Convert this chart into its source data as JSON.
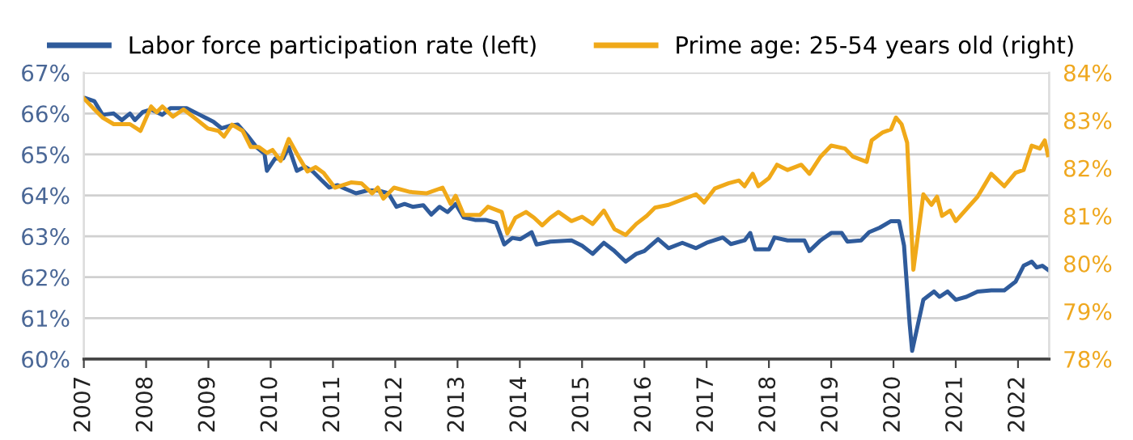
{
  "chart_data": {
    "type": "line",
    "legend": "top left",
    "grid": "y",
    "marker": "none",
    "line_style": "solid",
    "xlim": [
      2007,
      2022.5
    ],
    "xticks": [
      2007,
      2008,
      2009,
      2010,
      2011,
      2012,
      2013,
      2014,
      2015,
      2016,
      2017,
      2018,
      2019,
      2020,
      2021,
      2022
    ],
    "ylim": [
      60,
      67
    ],
    "yticks": [
      {
        "value": 60,
        "label": "60%"
      },
      {
        "value": 61,
        "label": "61%"
      },
      {
        "value": 62,
        "label": "62%"
      },
      {
        "value": 63,
        "label": "63%"
      },
      {
        "value": 64,
        "label": "64%"
      },
      {
        "value": 65,
        "label": "65%"
      },
      {
        "value": 66,
        "label": "66%"
      },
      {
        "value": 67,
        "label": "67%"
      }
    ],
    "y2lim": [
      78,
      84
    ],
    "y2ticks": [
      {
        "value": 78,
        "label": "78%"
      },
      {
        "value": 79,
        "label": "79%"
      },
      {
        "value": 80,
        "label": "80%"
      },
      {
        "value": 81,
        "label": "81%"
      },
      {
        "value": 82,
        "label": "82%"
      },
      {
        "value": 83,
        "label": "83%"
      },
      {
        "value": 84,
        "label": "84%"
      }
    ],
    "series": [
      {
        "name": "Labor force participation rate (left)",
        "color": "#2f5b9b",
        "x": [
          2007.0,
          2007.17,
          2007.3,
          2007.48,
          2007.61,
          2007.74,
          2007.82,
          2007.95,
          2008.08,
          2008.26,
          2008.39,
          2008.65,
          2008.86,
          2009.08,
          2009.21,
          2009.34,
          2009.47,
          2009.64,
          2009.77,
          2009.9,
          2009.94,
          2010.07,
          2010.2,
          2010.29,
          2010.42,
          2010.55,
          2010.68,
          2010.81,
          2010.94,
          2011.07,
          2011.2,
          2011.37,
          2011.55,
          2011.72,
          2011.89,
          2012.02,
          2012.15,
          2012.28,
          2012.45,
          2012.58,
          2012.71,
          2012.84,
          2012.97,
          2013.1,
          2013.28,
          2013.45,
          2013.62,
          2013.75,
          2013.88,
          2014.01,
          2014.19,
          2014.27,
          2014.49,
          2014.83,
          2015.0,
          2015.17,
          2015.35,
          2015.52,
          2015.7,
          2015.87,
          2016.0,
          2016.22,
          2016.39,
          2016.61,
          2016.83,
          2017.0,
          2017.26,
          2017.39,
          2017.61,
          2017.7,
          2017.78,
          2018.0,
          2018.09,
          2018.3,
          2018.57,
          2018.65,
          2018.83,
          2019.0,
          2019.17,
          2019.26,
          2019.48,
          2019.61,
          2019.78,
          2019.96,
          2020.09,
          2020.17,
          2020.26,
          2020.3,
          2020.48,
          2020.65,
          2020.74,
          2020.87,
          2021.0,
          2021.17,
          2021.35,
          2021.57,
          2021.78,
          2021.96,
          2022.09,
          2022.22,
          2022.3,
          2022.39,
          2022.48
        ],
        "values": [
          66.39,
          66.3,
          65.97,
          66.0,
          65.84,
          66.0,
          65.84,
          66.04,
          66.1,
          65.97,
          66.13,
          66.13,
          65.97,
          65.8,
          65.64,
          65.7,
          65.73,
          65.44,
          65.18,
          65.02,
          64.6,
          64.9,
          64.9,
          65.18,
          64.6,
          64.7,
          64.58,
          64.38,
          64.19,
          64.25,
          64.16,
          64.05,
          64.12,
          64.12,
          64.05,
          63.72,
          63.79,
          63.72,
          63.76,
          63.53,
          63.72,
          63.59,
          63.79,
          63.46,
          63.4,
          63.4,
          63.33,
          62.8,
          62.96,
          62.93,
          63.1,
          62.8,
          62.87,
          62.9,
          62.77,
          62.57,
          62.84,
          62.64,
          62.38,
          62.57,
          62.64,
          62.93,
          62.71,
          62.84,
          62.71,
          62.84,
          62.97,
          62.81,
          62.9,
          63.08,
          62.68,
          62.68,
          62.97,
          62.9,
          62.9,
          62.64,
          62.9,
          63.08,
          63.08,
          62.87,
          62.9,
          63.1,
          63.21,
          63.37,
          63.37,
          62.77,
          60.86,
          60.2,
          61.45,
          61.65,
          61.52,
          61.65,
          61.45,
          61.52,
          61.65,
          61.68,
          61.68,
          61.89,
          62.28,
          62.38,
          62.24,
          62.28,
          62.18
        ]
      },
      {
        "name": "Prime age: 25-54 years old (right)",
        "color": "#f0a919",
        "axis": "y2",
        "x": [
          2007.0,
          2007.17,
          2007.3,
          2007.48,
          2007.74,
          2007.91,
          2008.08,
          2008.17,
          2008.26,
          2008.43,
          2008.6,
          2008.77,
          2008.99,
          2009.16,
          2009.25,
          2009.38,
          2009.55,
          2009.68,
          2009.81,
          2009.94,
          2010.03,
          2010.16,
          2010.29,
          2010.46,
          2010.59,
          2010.72,
          2010.85,
          2011.03,
          2011.29,
          2011.46,
          2011.63,
          2011.72,
          2011.81,
          2011.98,
          2012.24,
          2012.5,
          2012.76,
          2012.89,
          2012.97,
          2013.1,
          2013.36,
          2013.49,
          2013.71,
          2013.8,
          2013.93,
          2014.1,
          2014.23,
          2014.36,
          2014.49,
          2014.62,
          2014.83,
          2015.0,
          2015.17,
          2015.35,
          2015.52,
          2015.7,
          2015.87,
          2016.04,
          2016.17,
          2016.39,
          2016.61,
          2016.83,
          2016.96,
          2017.13,
          2017.35,
          2017.52,
          2017.61,
          2017.74,
          2017.83,
          2018.0,
          2018.13,
          2018.3,
          2018.52,
          2018.65,
          2018.83,
          2019.0,
          2019.22,
          2019.35,
          2019.57,
          2019.65,
          2019.83,
          2019.96,
          2020.04,
          2020.13,
          2020.22,
          2020.26,
          2020.32,
          2020.48,
          2020.61,
          2020.7,
          2020.78,
          2020.91,
          2021.0,
          2021.35,
          2021.57,
          2021.78,
          2021.96,
          2022.09,
          2022.22,
          2022.35,
          2022.43,
          2022.48
        ],
        "values": [
          83.46,
          83.23,
          83.06,
          82.92,
          82.92,
          82.78,
          83.29,
          83.17,
          83.29,
          83.08,
          83.23,
          83.06,
          82.83,
          82.78,
          82.66,
          82.91,
          82.78,
          82.44,
          82.44,
          82.32,
          82.38,
          82.15,
          82.61,
          82.21,
          81.93,
          82.02,
          81.9,
          81.59,
          81.7,
          81.68,
          81.47,
          81.59,
          81.36,
          81.59,
          81.5,
          81.47,
          81.59,
          81.25,
          81.42,
          81.02,
          81.02,
          81.19,
          81.08,
          80.63,
          80.96,
          81.08,
          80.96,
          80.8,
          80.96,
          81.08,
          80.89,
          80.98,
          80.83,
          81.11,
          80.72,
          80.6,
          80.83,
          81.0,
          81.17,
          81.23,
          81.34,
          81.45,
          81.28,
          81.57,
          81.68,
          81.74,
          81.62,
          81.88,
          81.62,
          81.79,
          82.07,
          81.96,
          82.07,
          81.88,
          82.24,
          82.47,
          82.41,
          82.24,
          82.13,
          82.58,
          82.75,
          82.81,
          83.06,
          82.92,
          82.53,
          81.45,
          79.87,
          81.45,
          81.23,
          81.4,
          81.0,
          81.11,
          80.89,
          81.4,
          81.88,
          81.62,
          81.9,
          81.96,
          82.47,
          82.41,
          82.58,
          82.27
        ]
      }
    ]
  }
}
